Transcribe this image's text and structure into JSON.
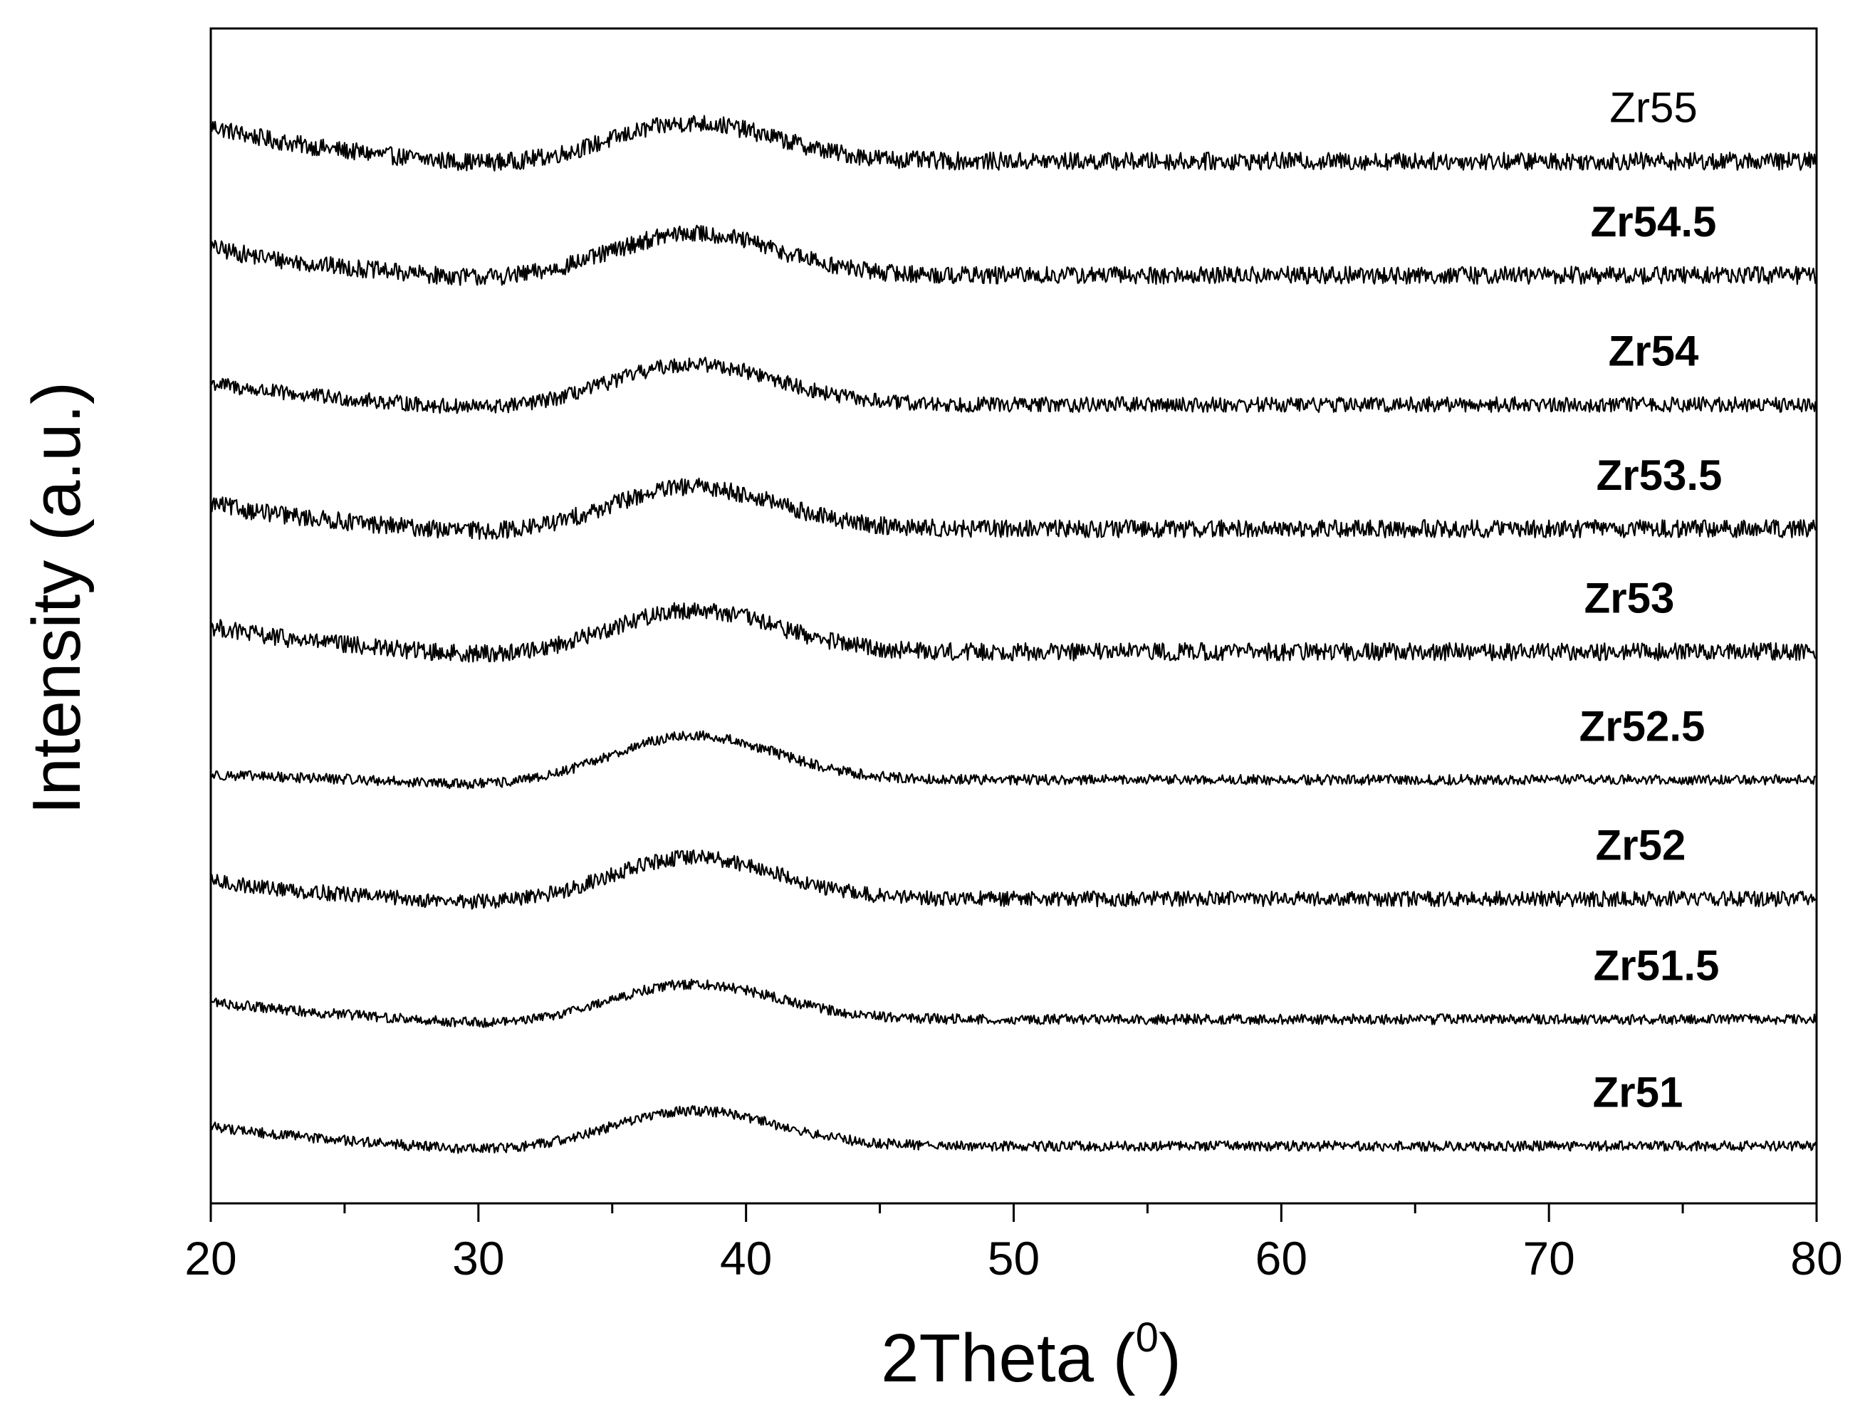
{
  "chart_data": {
    "type": "line",
    "title": "",
    "xlabel_main": "2Theta (",
    "xlabel_sup": "0",
    "xlabel_end": ")",
    "ylabel": "Intensity (a.u.)",
    "xlim": [
      20,
      80
    ],
    "x_ticks": [
      20,
      30,
      40,
      50,
      60,
      70,
      80
    ],
    "x_tick_labels": [
      "20",
      "30",
      "40",
      "50",
      "60",
      "70",
      "80"
    ],
    "y_ticks_shown": false,
    "grid": false,
    "stacked_offset": true,
    "peak_position": 38,
    "series": [
      {
        "name": "Zr55",
        "baseline": 8.2,
        "peak": 0.3,
        "start": 0.28,
        "noise": 0.07,
        "label_bold": false
      },
      {
        "name": "Zr54.5",
        "baseline": 7.3,
        "peak": 0.33,
        "start": 0.22,
        "noise": 0.07,
        "label_bold": true
      },
      {
        "name": "Zr54",
        "baseline": 6.28,
        "peak": 0.32,
        "start": 0.17,
        "noise": 0.06,
        "label_bold": true
      },
      {
        "name": "Zr53.5",
        "baseline": 5.3,
        "peak": 0.33,
        "start": 0.2,
        "noise": 0.07,
        "label_bold": true
      },
      {
        "name": "Zr53",
        "baseline": 4.33,
        "peak": 0.33,
        "start": 0.2,
        "noise": 0.07,
        "label_bold": true
      },
      {
        "name": "Zr52.5",
        "baseline": 3.32,
        "peak": 0.35,
        "start": 0.04,
        "noise": 0.04,
        "label_bold": true
      },
      {
        "name": "Zr52",
        "baseline": 2.38,
        "peak": 0.33,
        "start": 0.14,
        "noise": 0.06,
        "label_bold": true
      },
      {
        "name": "Zr51.5",
        "baseline": 1.43,
        "peak": 0.28,
        "start": 0.14,
        "noise": 0.04,
        "label_bold": true
      },
      {
        "name": "Zr51",
        "baseline": 0.43,
        "peak": 0.28,
        "start": 0.16,
        "noise": 0.04,
        "label_bold": true
      }
    ]
  }
}
